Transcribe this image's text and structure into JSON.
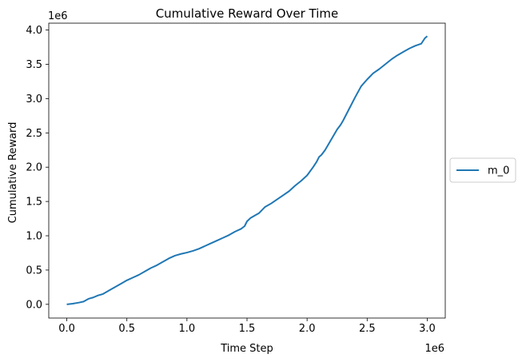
{
  "chart_data": {
    "type": "line",
    "title": "Cumulative Reward Over Time",
    "xlabel": "Time Step",
    "ylabel": "Cumulative Reward",
    "x_scale_label": "1e6",
    "y_scale_label": "1e6",
    "x_multiplier": 1000000,
    "y_multiplier": 1000000,
    "xlim": [
      -0.15,
      3.15
    ],
    "ylim": [
      -0.2,
      4.1
    ],
    "x_ticks": [
      0.0,
      0.5,
      1.0,
      1.5,
      2.0,
      2.5,
      3.0
    ],
    "x_tick_labels": [
      "0.0",
      "0.5",
      "1.0",
      "1.5",
      "2.0",
      "2.5",
      "3.0"
    ],
    "y_ticks": [
      0.0,
      0.5,
      1.0,
      1.5,
      2.0,
      2.5,
      3.0,
      3.5,
      4.0
    ],
    "y_tick_labels": [
      "0.0",
      "0.5",
      "1.0",
      "1.5",
      "2.0",
      "2.5",
      "3.0",
      "3.5",
      "4.0"
    ],
    "grid": false,
    "legend_placement": "center-right-outside",
    "series": [
      {
        "name": "m_0",
        "color": "#1f77b4",
        "x": [
          0,
          0.05,
          0.1,
          0.14,
          0.18,
          0.22,
          0.26,
          0.3,
          0.35,
          0.4,
          0.45,
          0.5,
          0.55,
          0.6,
          0.65,
          0.7,
          0.75,
          0.8,
          0.85,
          0.9,
          0.95,
          1.0,
          1.05,
          1.1,
          1.15,
          1.2,
          1.25,
          1.3,
          1.35,
          1.4,
          1.45,
          1.48,
          1.5,
          1.53,
          1.57,
          1.6,
          1.65,
          1.7,
          1.75,
          1.8,
          1.85,
          1.9,
          1.95,
          2.0,
          2.05,
          2.08,
          2.1,
          2.12,
          2.15,
          2.2,
          2.25,
          2.28,
          2.3,
          2.35,
          2.4,
          2.45,
          2.5,
          2.55,
          2.6,
          2.65,
          2.7,
          2.75,
          2.8,
          2.85,
          2.9,
          2.95,
          2.98,
          3.0
        ],
        "y": [
          0.0,
          0.01,
          0.025,
          0.04,
          0.08,
          0.1,
          0.13,
          0.15,
          0.2,
          0.25,
          0.3,
          0.35,
          0.39,
          0.43,
          0.48,
          0.53,
          0.57,
          0.62,
          0.67,
          0.71,
          0.735,
          0.755,
          0.78,
          0.81,
          0.85,
          0.89,
          0.93,
          0.97,
          1.01,
          1.06,
          1.1,
          1.14,
          1.21,
          1.26,
          1.3,
          1.33,
          1.42,
          1.47,
          1.53,
          1.59,
          1.65,
          1.73,
          1.8,
          1.88,
          2.0,
          2.08,
          2.15,
          2.18,
          2.25,
          2.4,
          2.55,
          2.62,
          2.68,
          2.85,
          3.02,
          3.18,
          3.28,
          3.37,
          3.43,
          3.5,
          3.57,
          3.63,
          3.68,
          3.73,
          3.77,
          3.8,
          3.88,
          3.91
        ]
      }
    ]
  }
}
